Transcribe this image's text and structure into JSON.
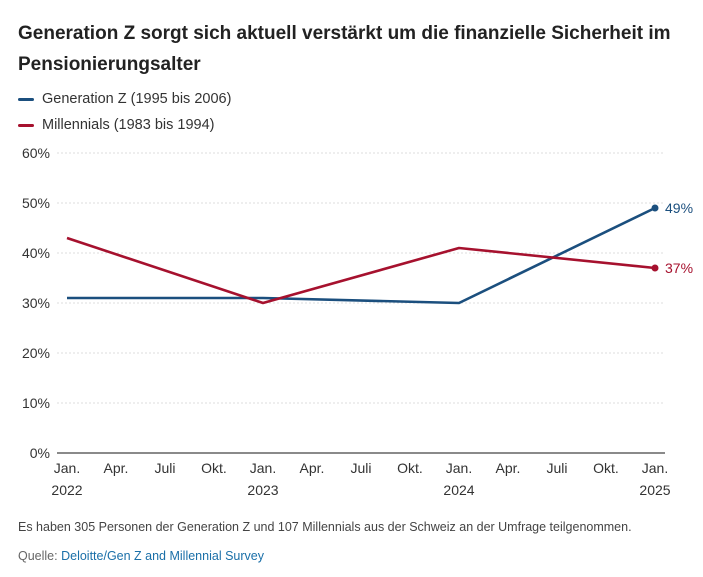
{
  "chart_data": {
    "type": "line",
    "title": "Generation Z sorgt sich aktuell verstärkt um die finanzielle Sicherheit im Pensionierungsalter",
    "x_ticks": [
      {
        "line1": "Jan.",
        "line2": "2022"
      },
      {
        "line1": "Apr.",
        "line2": ""
      },
      {
        "line1": "Juli",
        "line2": ""
      },
      {
        "line1": "Okt.",
        "line2": ""
      },
      {
        "line1": "Jan.",
        "line2": "2023"
      },
      {
        "line1": "Apr.",
        "line2": ""
      },
      {
        "line1": "Juli",
        "line2": ""
      },
      {
        "line1": "Okt.",
        "line2": ""
      },
      {
        "line1": "Jan.",
        "line2": "2024"
      },
      {
        "line1": "Apr.",
        "line2": ""
      },
      {
        "line1": "Juli",
        "line2": ""
      },
      {
        "line1": "Okt.",
        "line2": ""
      },
      {
        "line1": "Jan.",
        "line2": "2025"
      }
    ],
    "y_ticks": [
      "0%",
      "10%",
      "20%",
      "30%",
      "40%",
      "50%",
      "60%"
    ],
    "ylim": [
      0,
      60
    ],
    "x_points": [
      0,
      4,
      8,
      12
    ],
    "series": [
      {
        "name": "Generation Z (1995 bis 2006)",
        "color": "#1b4f7e",
        "values": [
          31,
          31,
          30,
          49
        ],
        "end_label": "49%"
      },
      {
        "name": "Millennials (1983 bis 1994)",
        "color": "#a6112e",
        "values": [
          43,
          30,
          41,
          37
        ],
        "end_label": "37%"
      }
    ],
    "note": "Es haben 305 Personen der Generation Z und 107 Millennials aus der Schweiz an der Umfrage teilgenommen.",
    "source_prefix": "Quelle:",
    "source_link": "Deloitte/Gen Z and Millennial Survey"
  }
}
